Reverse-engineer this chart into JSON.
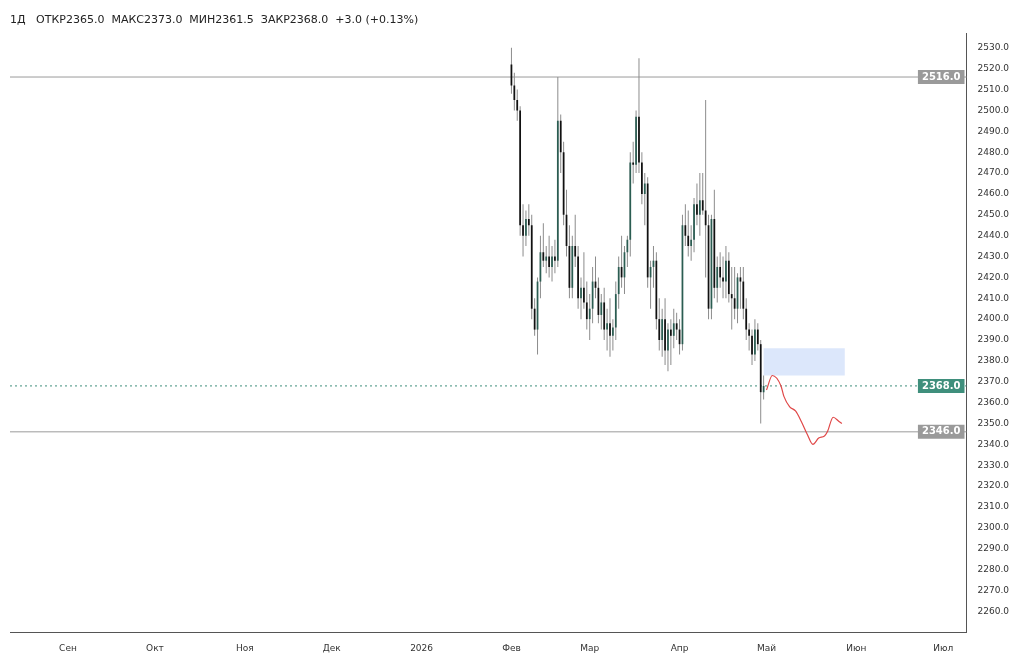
{
  "chart_data": {
    "type": "candlestick",
    "title": "1Д   ОТКР2365.0  МАКС2373.0  МИН2361.5  ЗАКР2368.0  +3.0 (+0.13%)",
    "categories": [
      null,
      null,
      null,
      null,
      null,
      null,
      null,
      null,
      null,
      null,
      null,
      null,
      null,
      null,
      null,
      null,
      null,
      null,
      null,
      null,
      "Сен",
      null,
      null,
      null,
      null,
      null,
      null,
      null,
      null,
      null,
      null,
      null,
      null,
      null,
      null,
      null,
      null,
      null,
      null,
      null,
      null,
      null,
      null,
      null,
      null,
      null,
      null,
      null,
      null,
      null,
      "Окт",
      null,
      null,
      null,
      null,
      null,
      null,
      null,
      null,
      null,
      null,
      null,
      null,
      null,
      null,
      null,
      null,
      null,
      null,
      null,
      null,
      null,
      null,
      null,
      null,
      null,
      null,
      null,
      null,
      null,
      null,
      "Ноя",
      null,
      null,
      null,
      null,
      null,
      null,
      null,
      null,
      null,
      null,
      null,
      null,
      null,
      null,
      null,
      null,
      null,
      null,
      null,
      null,
      null,
      null,
      null,
      null,
      null,
      null,
      null,
      null,
      null,
      "Дек",
      null,
      null,
      null,
      null,
      null,
      null,
      null,
      null,
      null,
      null,
      null,
      null,
      null,
      null,
      null,
      null,
      null,
      null,
      null,
      null,
      null,
      null,
      null,
      null,
      null,
      null,
      null,
      null,
      null,
      null,
      "2026",
      null,
      null,
      null,
      null,
      null,
      null,
      null,
      null,
      null,
      null,
      null,
      null,
      null,
      null,
      null,
      null,
      null,
      null,
      null,
      null,
      null,
      null,
      null,
      null,
      null,
      null,
      null,
      null,
      null,
      null,
      "Фев",
      null,
      null,
      null,
      null,
      null,
      null,
      null,
      null,
      null,
      null,
      null,
      null,
      null,
      null,
      null,
      null,
      null,
      null,
      null,
      null,
      null,
      null,
      null,
      null,
      null,
      null,
      "Мар",
      null,
      null,
      null,
      null,
      null,
      null,
      null,
      null,
      null,
      null,
      null,
      null,
      null,
      null,
      null,
      null,
      null,
      null,
      null,
      null,
      null,
      null,
      null,
      null,
      null,
      null,
      null,
      null,
      null,
      null,
      "Апр",
      null,
      null,
      null,
      null,
      null,
      null,
      null,
      null,
      null,
      null,
      null,
      null,
      null,
      null,
      null,
      null,
      null,
      null,
      null,
      null,
      null,
      null,
      null,
      null,
      null,
      null,
      null,
      null,
      null,
      "Май",
      null,
      null,
      null,
      null,
      null,
      null,
      null,
      null,
      null,
      null,
      null,
      null,
      null,
      null,
      null,
      null,
      null,
      null,
      null,
      null,
      null,
      null,
      null,
      null,
      null,
      null,
      null,
      null,
      null,
      null,
      "Июн",
      null,
      null,
      null,
      null,
      null,
      null,
      null,
      null,
      null,
      null,
      null,
      null,
      null,
      null,
      null,
      null,
      null,
      null,
      null,
      null,
      null,
      null,
      null,
      null,
      null,
      null,
      null,
      null,
      null,
      "Июл",
      null,
      null,
      null,
      null,
      null,
      null,
      null,
      null
    ],
    "ohlc": [
      null,
      null,
      null,
      null,
      null,
      null,
      null,
      null,
      null,
      null,
      null,
      null,
      null,
      null,
      null,
      null,
      null,
      null,
      null,
      null,
      null,
      null,
      null,
      null,
      null,
      null,
      null,
      null,
      null,
      null,
      null,
      null,
      null,
      null,
      null,
      null,
      null,
      null,
      null,
      null,
      null,
      null,
      null,
      null,
      null,
      null,
      null,
      null,
      null,
      null,
      null,
      null,
      null,
      null,
      null,
      null,
      null,
      null,
      null,
      null,
      null,
      null,
      null,
      null,
      null,
      null,
      null,
      null,
      null,
      null,
      null,
      null,
      null,
      null,
      null,
      null,
      null,
      null,
      null,
      null,
      null,
      null,
      null,
      null,
      null,
      null,
      null,
      null,
      null,
      null,
      null,
      null,
      null,
      null,
      null,
      null,
      null,
      null,
      null,
      null,
      null,
      null,
      null,
      null,
      null,
      null,
      null,
      null,
      null,
      null,
      null,
      null,
      null,
      null,
      null,
      null,
      null,
      null,
      null,
      null,
      null,
      null,
      null,
      null,
      null,
      null,
      null,
      null,
      null,
      null,
      null,
      null,
      null,
      null,
      null,
      null,
      null,
      null,
      null,
      null,
      null,
      null,
      null,
      null,
      null,
      null,
      null,
      null,
      null,
      null,
      null,
      null,
      null,
      null,
      null,
      null,
      null,
      null,
      null,
      null,
      null,
      null,
      null,
      null,
      null,
      null,
      null,
      null,
      null,
      null,
      null,
      null,
      null,
      [
        2522,
        2530,
        2508,
        2512
      ],
      [
        2512,
        2518,
        2500,
        2505
      ],
      [
        2505,
        2510,
        2495,
        2500
      ],
      [
        2500,
        2502,
        2440,
        2445
      ],
      [
        2445,
        2455,
        2430,
        2440
      ],
      [
        2440,
        2452,
        2435,
        2448
      ],
      [
        2448,
        2455,
        2440,
        2445
      ],
      [
        2445,
        2450,
        2400,
        2405
      ],
      [
        2405,
        2410,
        2392,
        2395
      ],
      [
        2395,
        2420,
        2383,
        2418
      ],
      [
        2418,
        2440,
        2410,
        2432
      ],
      [
        2432,
        2446,
        2425,
        2428
      ],
      [
        2428,
        2435,
        2422,
        2430
      ],
      [
        2430,
        2440,
        2420,
        2425
      ],
      [
        2425,
        2435,
        2418,
        2430
      ],
      [
        2430,
        2438,
        2422,
        2428
      ],
      [
        2428,
        2516,
        2425,
        2495
      ],
      [
        2495,
        2498,
        2470,
        2480
      ],
      [
        2480,
        2485,
        2445,
        2450
      ],
      [
        2450,
        2462,
        2430,
        2435
      ],
      [
        2435,
        2445,
        2410,
        2415
      ],
      [
        2415,
        2440,
        2410,
        2435
      ],
      [
        2435,
        2450,
        2425,
        2430
      ],
      [
        2430,
        2435,
        2405,
        2410
      ],
      [
        2410,
        2420,
        2400,
        2415
      ],
      [
        2415,
        2432,
        2405,
        2408
      ],
      [
        2408,
        2418,
        2395,
        2400
      ],
      [
        2400,
        2412,
        2390,
        2405
      ],
      [
        2405,
        2425,
        2398,
        2418
      ],
      [
        2418,
        2430,
        2410,
        2415
      ],
      [
        2415,
        2420,
        2398,
        2402
      ],
      [
        2402,
        2412,
        2395,
        2408
      ],
      [
        2408,
        2415,
        2390,
        2395
      ],
      [
        2395,
        2405,
        2385,
        2398
      ],
      [
        2398,
        2410,
        2382,
        2392
      ],
      [
        2392,
        2400,
        2385,
        2396
      ],
      [
        2396,
        2418,
        2390,
        2412
      ],
      [
        2412,
        2430,
        2405,
        2425
      ],
      [
        2425,
        2440,
        2415,
        2420
      ],
      [
        2420,
        2435,
        2412,
        2432
      ],
      [
        2432,
        2440,
        2425,
        2438
      ],
      [
        2438,
        2480,
        2430,
        2475
      ],
      [
        2475,
        2485,
        2465,
        2474
      ],
      [
        2474,
        2500,
        2470,
        2497
      ],
      [
        2497,
        2525,
        2470,
        2475
      ],
      [
        2475,
        2480,
        2455,
        2460
      ],
      [
        2460,
        2470,
        2445,
        2465
      ],
      [
        2465,
        2468,
        2415,
        2420
      ],
      [
        2420,
        2428,
        2405,
        2425
      ],
      [
        2425,
        2435,
        2415,
        2428
      ],
      [
        2428,
        2432,
        2395,
        2400
      ],
      [
        2400,
        2410,
        2385,
        2390
      ],
      [
        2390,
        2405,
        2382,
        2400
      ],
      [
        2400,
        2410,
        2378,
        2385
      ],
      [
        2385,
        2398,
        2375,
        2395
      ],
      [
        2395,
        2400,
        2378,
        2392
      ],
      [
        2392,
        2405,
        2386,
        2398
      ],
      [
        2398,
        2403,
        2390,
        2395
      ],
      [
        2395,
        2400,
        2383,
        2388
      ],
      [
        2388,
        2450,
        2385,
        2445
      ],
      [
        2445,
        2455,
        2435,
        2440
      ],
      [
        2440,
        2452,
        2430,
        2435
      ],
      [
        2435,
        2445,
        2428,
        2438
      ],
      [
        2438,
        2458,
        2432,
        2455
      ],
      [
        2455,
        2465,
        2445,
        2450
      ],
      [
        2450,
        2470,
        2440,
        2457
      ],
      [
        2457,
        2470,
        2450,
        2452
      ],
      [
        2452,
        2505,
        2420,
        2445
      ],
      [
        2445,
        2450,
        2400,
        2405
      ],
      [
        2405,
        2450,
        2400,
        2448
      ],
      [
        2448,
        2462,
        2410,
        2415
      ],
      [
        2415,
        2430,
        2408,
        2425
      ],
      [
        2425,
        2432,
        2415,
        2420
      ],
      [
        2420,
        2430,
        2410,
        2418
      ],
      [
        2418,
        2435,
        2410,
        2428
      ],
      [
        2428,
        2432,
        2408,
        2412
      ],
      [
        2412,
        2425,
        2395,
        2410
      ],
      [
        2410,
        2425,
        2400,
        2405
      ],
      [
        2405,
        2422,
        2398,
        2420
      ],
      [
        2420,
        2425,
        2405,
        2418
      ],
      [
        2418,
        2425,
        2400,
        2405
      ],
      [
        2405,
        2410,
        2390,
        2395
      ],
      [
        2395,
        2398,
        2385,
        2392
      ],
      [
        2392,
        2395,
        2378,
        2383
      ],
      [
        2383,
        2400,
        2380,
        2395
      ],
      [
        2395,
        2398,
        2385,
        2388
      ],
      [
        2388,
        2390,
        2350,
        2365
      ],
      [
        2365,
        2373,
        2361.5,
        2368
      ],
      null,
      null,
      null,
      null,
      null,
      null,
      null,
      null,
      null,
      null,
      null,
      null,
      null,
      null,
      null,
      null,
      null,
      null,
      null,
      null,
      null,
      null,
      null,
      null,
      null,
      null,
      null,
      null,
      null,
      null,
      null,
      null,
      null,
      null,
      null,
      null,
      null,
      null,
      null,
      null,
      null,
      null,
      null,
      null,
      null,
      null,
      null,
      null,
      null,
      null,
      null,
      null,
      null,
      null,
      null,
      null,
      null,
      null,
      null,
      null,
      null,
      null,
      null,
      null,
      null,
      null,
      null,
      null,
      null,
      null
    ],
    "colors": [
      null,
      null,
      null,
      null,
      null,
      null,
      null,
      null,
      null,
      null,
      null,
      null,
      null,
      null,
      null,
      null,
      null,
      null,
      null,
      null,
      null,
      null,
      null,
      null,
      null,
      null,
      null,
      null,
      null,
      null,
      null,
      null,
      null,
      null,
      null,
      null,
      null,
      null,
      null,
      null,
      null,
      null,
      null,
      null,
      null,
      null,
      null,
      null,
      null,
      null,
      null,
      null,
      null,
      null,
      null,
      null,
      null,
      null,
      null,
      null,
      null,
      null,
      null,
      null,
      null,
      null,
      null,
      null,
      null,
      null,
      null,
      null,
      null,
      null,
      null,
      null,
      null,
      null,
      null,
      null,
      null,
      null,
      null,
      null,
      null,
      null,
      null,
      null,
      null,
      null,
      null,
      null,
      null,
      null,
      null,
      null,
      null,
      null,
      null,
      null,
      null,
      null,
      null,
      null,
      null,
      null,
      null,
      null,
      null,
      null,
      null,
      null,
      null,
      null,
      null,
      null,
      null,
      null,
      null,
      null,
      null,
      null,
      null,
      null,
      null,
      null,
      null,
      null,
      null,
      null,
      null,
      null,
      null,
      null,
      null,
      null,
      null,
      null,
      null,
      null,
      null,
      null,
      null,
      null,
      null,
      null,
      null,
      null,
      null,
      null,
      null,
      null,
      null,
      null,
      null,
      null,
      null,
      null,
      null,
      null,
      null,
      null,
      null,
      null,
      null,
      null,
      null,
      null,
      null,
      null,
      null,
      null,
      null,
      "#111111",
      "#111111",
      "#111111",
      "#111111",
      "#111111",
      "#2b5d52",
      "#111111",
      "#111111",
      "#111111",
      "#2b5d52",
      "#2b5d52",
      "#111111",
      "#2b5d52",
      "#111111",
      "#2b5d52",
      "#111111",
      "#2b5d52",
      "#111111",
      "#111111",
      "#111111",
      "#111111",
      "#2b5d52",
      "#111111",
      "#111111",
      "#2b5d52",
      "#111111",
      "#111111",
      "#2b5d52",
      "#2b5d52",
      "#111111",
      "#111111",
      "#2b5d52",
      "#111111",
      "#2b5d52",
      "#111111",
      "#2b5d52",
      "#2b5d52",
      "#2b5d52",
      "#111111",
      "#2b5d52",
      "#2b5d52",
      "#2b5d52",
      "#111111",
      "#2b5d52",
      "#111111",
      "#111111",
      "#2b5d52",
      "#111111",
      "#2b5d52",
      "#2b5d52",
      "#111111",
      "#111111",
      "#2b5d52",
      "#111111",
      "#2b5d52",
      "#111111",
      "#2b5d52",
      "#111111",
      "#111111",
      "#2b5d52",
      "#111111",
      "#111111",
      "#2b5d52",
      "#2b5d52",
      "#111111",
      "#2b5d52",
      "#111111",
      "#111111",
      "#111111",
      "#2b5d52",
      "#111111",
      "#2b5d52",
      "#111111",
      "#111111",
      "#2b5d52",
      "#111111",
      "#111111",
      "#111111",
      "#2b5d52",
      "#111111",
      "#111111",
      "#111111",
      "#111111",
      "#111111",
      "#2b5d52",
      "#111111",
      "#111111",
      "#2b5d52",
      null,
      null,
      null,
      null,
      null,
      null,
      null,
      null,
      null,
      null,
      null,
      null,
      null,
      null,
      null,
      null,
      null,
      null,
      null,
      null,
      null,
      null,
      null,
      null,
      null,
      null,
      null,
      null,
      null,
      null,
      null,
      null,
      null,
      null,
      null,
      null,
      null,
      null,
      null,
      null,
      null,
      null,
      null,
      null,
      null,
      null,
      null,
      null,
      null,
      null,
      null,
      null,
      null,
      null,
      null,
      null,
      null,
      null,
      null,
      null,
      null,
      null,
      null,
      null,
      null,
      null,
      null,
      null,
      null,
      null
    ],
    "series": [
      {
        "type": "line",
        "color": "#e04848",
        "values": [
          null,
          null,
          null,
          null,
          null,
          null,
          null,
          null,
          null,
          null,
          null,
          null,
          null,
          null,
          null,
          null,
          null,
          null,
          null,
          null,
          null,
          null,
          null,
          null,
          null,
          null,
          null,
          null,
          null,
          null,
          null,
          null,
          null,
          null,
          null,
          null,
          null,
          null,
          null,
          null,
          null,
          null,
          null,
          null,
          null,
          null,
          null,
          null,
          null,
          null,
          null,
          null,
          null,
          null,
          null,
          null,
          null,
          null,
          null,
          null,
          null,
          null,
          null,
          null,
          null,
          null,
          null,
          null,
          null,
          null,
          null,
          null,
          null,
          null,
          null,
          null,
          null,
          null,
          null,
          null,
          null,
          null,
          null,
          null,
          null,
          null,
          null,
          null,
          null,
          null,
          null,
          null,
          null,
          null,
          null,
          null,
          null,
          null,
          null,
          null,
          null,
          null,
          null,
          null,
          null,
          null,
          null,
          null,
          null,
          null,
          null,
          null,
          null,
          null,
          null,
          null,
          null,
          null,
          null,
          null,
          null,
          null,
          null,
          null,
          null,
          null,
          null,
          null,
          null,
          null,
          null,
          null,
          null,
          null,
          null,
          null,
          null,
          null,
          null,
          null,
          null,
          null,
          null,
          null,
          null,
          null,
          null,
          null,
          null,
          null,
          null,
          null,
          null,
          null,
          null,
          null,
          null,
          null,
          null,
          null,
          null,
          null,
          null,
          null,
          null,
          null,
          null,
          null,
          null,
          null,
          null,
          null,
          null,
          null,
          null,
          null,
          null,
          null,
          null,
          null,
          null,
          null,
          null,
          null,
          null,
          null,
          null,
          null,
          null,
          null,
          null,
          null,
          null,
          null,
          null,
          null,
          null,
          null,
          null,
          null,
          null,
          null,
          null,
          null,
          null,
          null,
          null,
          null,
          null,
          null,
          null,
          null,
          null,
          null,
          null,
          null,
          null,
          null,
          null,
          null,
          null,
          null,
          null,
          null,
          null,
          null,
          null,
          null,
          null,
          null,
          null,
          null,
          null,
          null,
          null,
          null,
          null,
          null,
          null,
          null,
          null,
          null,
          null,
          null,
          null,
          null,
          null,
          null,
          null,
          null,
          null,
          null,
          null,
          null,
          null,
          null,
          null,
          null,
          null,
          null,
          null,
          2366,
          null,
          2373,
          null,
          null,
          2368,
          2363,
          null,
          2358,
          null,
          2356,
          null,
          2351,
          null,
          2345,
          null,
          2340,
          null,
          2343,
          null,
          2344,
          2346,
          null,
          2353,
          null,
          2351,
          2350,
          null,
          null,
          null,
          null,
          null,
          null,
          null,
          null,
          null,
          null,
          null,
          null,
          null,
          null,
          null,
          null,
          null,
          null,
          null,
          null,
          null,
          null,
          null,
          null,
          null,
          null,
          null,
          null,
          null,
          null,
          null,
          null,
          null,
          null,
          null,
          null,
          null,
          null,
          null,
          null,
          null,
          null,
          null
        ]
      }
    ],
    "ylim": [
      2250,
      2537
    ],
    "yticks": [
      {
        "value": 2260,
        "label": "2260.0"
      },
      {
        "value": 2270,
        "label": "2270.0"
      },
      {
        "value": 2280,
        "label": "2280.0"
      },
      {
        "value": 2290,
        "label": "2290.0"
      },
      {
        "value": 2300,
        "label": "2300.0"
      },
      {
        "value": 2310,
        "label": "2310.0"
      },
      {
        "value": 2320,
        "label": "2320.0"
      },
      {
        "value": 2330,
        "label": "2330.0"
      },
      {
        "value": 2340,
        "label": "2340.0"
      },
      {
        "value": 2350,
        "label": "2350.0"
      },
      {
        "value": 2360,
        "label": "2360.0"
      },
      {
        "value": 2370,
        "label": "2370.0"
      },
      {
        "value": 2380,
        "label": "2380.0"
      },
      {
        "value": 2390,
        "label": "2390.0"
      },
      {
        "value": 2400,
        "label": "2400.0"
      },
      {
        "value": 2410,
        "label": "2410.0"
      },
      {
        "value": 2420,
        "label": "2420.0"
      },
      {
        "value": 2430,
        "label": "2430.0"
      },
      {
        "value": 2440,
        "label": "2440.0"
      },
      {
        "value": 2450,
        "label": "2450.0"
      },
      {
        "value": 2460,
        "label": "2460.0"
      },
      {
        "value": 2470,
        "label": "2470.0"
      },
      {
        "value": 2480,
        "label": "2480.0"
      },
      {
        "value": 2490,
        "label": "2490.0"
      },
      {
        "value": 2500,
        "label": "2500.0"
      },
      {
        "value": 2510,
        "label": "2510.0"
      },
      {
        "value": 2520,
        "label": "2520.0"
      },
      {
        "value": 2530,
        "label": "2530.0"
      }
    ],
    "ref_lines": [
      {
        "axis": "y",
        "value": 2516,
        "label": "2516.0",
        "color": "#9a9a9a"
      },
      {
        "axis": "y",
        "value": 2346,
        "label": "2346.0",
        "color": "#9a9a9a"
      },
      {
        "axis": "y",
        "value": 2368,
        "label": "2368.0",
        "color": "#3f8f7c",
        "line_style": "dotted"
      }
    ],
    "bands": [
      {
        "axis": "y",
        "from": 2373,
        "to": 2386,
        "color": "#dce7fb"
      }
    ]
  }
}
